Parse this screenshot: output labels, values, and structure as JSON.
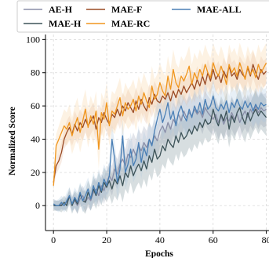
{
  "chart_data": {
    "type": "line",
    "xlabel": "Epochs",
    "ylabel": "Normalized Score",
    "xlim": [
      -3,
      81
    ],
    "ylim": [
      -15,
      103
    ],
    "xticks": [
      0,
      20,
      40,
      60,
      80
    ],
    "yticks": [
      0,
      20,
      40,
      60,
      80,
      100
    ],
    "grid": true,
    "legend_position": "top",
    "series": [
      {
        "name": "AE-H",
        "color": "#8a8ea8",
        "band_color": "#9aa3b6",
        "x": [
          0,
          1,
          2,
          3,
          4,
          5,
          6,
          7,
          8,
          9,
          10,
          11,
          12,
          13,
          14,
          15,
          16,
          17,
          18,
          19,
          20,
          21,
          22,
          23,
          24,
          25,
          26,
          27,
          28,
          29,
          30,
          31,
          32,
          33,
          34,
          35,
          36,
          37,
          38,
          39,
          40,
          41,
          42,
          43,
          44,
          45,
          46,
          47,
          48,
          49,
          50,
          51,
          52,
          53,
          54,
          55,
          56,
          57,
          58,
          59,
          60,
          61,
          62,
          63,
          64,
          65,
          66,
          67,
          68,
          69,
          70,
          71,
          72,
          73,
          74,
          75,
          76,
          77,
          78,
          79,
          80
        ],
        "values": [
          1,
          0,
          0,
          1,
          0,
          2,
          5,
          1,
          3,
          0,
          4,
          6,
          2,
          5,
          3,
          8,
          10,
          6,
          12,
          9,
          14,
          18,
          15,
          22,
          19,
          25,
          28,
          24,
          31,
          29,
          34,
          30,
          36,
          33,
          38,
          35,
          40,
          37,
          42,
          39,
          45,
          48,
          44,
          50,
          46,
          52,
          49,
          55,
          51,
          57,
          53,
          56,
          54,
          58,
          55,
          57,
          53,
          59,
          56,
          54,
          52,
          55,
          50,
          54,
          49,
          53,
          51,
          56,
          52,
          55,
          50,
          54,
          57,
          53,
          58,
          55,
          60,
          56,
          59,
          57,
          58
        ],
        "band": [
          3,
          3,
          3,
          3,
          3,
          4,
          4,
          4,
          5,
          5,
          5,
          6,
          6,
          6,
          6,
          7,
          7,
          7,
          7,
          8,
          8,
          8,
          9,
          9,
          9,
          9,
          10,
          10,
          10,
          10,
          10,
          10,
          10,
          10,
          10,
          10,
          10,
          10,
          10,
          10,
          10,
          10,
          10,
          10,
          10,
          10,
          10,
          10,
          10,
          10,
          10,
          10,
          10,
          10,
          10,
          10,
          10,
          10,
          10,
          10,
          10,
          10,
          10,
          10,
          10,
          10,
          10,
          10,
          10,
          10,
          10,
          10,
          10,
          10,
          10,
          10,
          10,
          10,
          10,
          10,
          10
        ]
      },
      {
        "name": "MAE-H",
        "color": "#3d5358",
        "band_color": "#6f8791",
        "x": [
          0,
          1,
          2,
          3,
          4,
          5,
          6,
          7,
          8,
          9,
          10,
          11,
          12,
          13,
          14,
          15,
          16,
          17,
          18,
          19,
          20,
          21,
          22,
          23,
          24,
          25,
          26,
          27,
          28,
          29,
          30,
          31,
          32,
          33,
          34,
          35,
          36,
          37,
          38,
          39,
          40,
          41,
          42,
          43,
          44,
          45,
          46,
          47,
          48,
          49,
          50,
          51,
          52,
          53,
          54,
          55,
          56,
          57,
          58,
          59,
          60,
          61,
          62,
          63,
          64,
          65,
          66,
          67,
          68,
          69,
          70,
          71,
          72,
          73,
          74,
          75,
          76,
          77,
          78,
          79,
          80
        ],
        "values": [
          0,
          0,
          0,
          0,
          2,
          0,
          6,
          0,
          4,
          1,
          7,
          3,
          2,
          8,
          4,
          10,
          6,
          12,
          8,
          14,
          11,
          15,
          10,
          16,
          13,
          18,
          12,
          20,
          17,
          24,
          18,
          22,
          25,
          21,
          27,
          22,
          30,
          26,
          34,
          28,
          30,
          36,
          33,
          40,
          37,
          35,
          42,
          38,
          44,
          40,
          42,
          46,
          43,
          48,
          45,
          50,
          47,
          52,
          49,
          50,
          58,
          52,
          48,
          55,
          51,
          57,
          46,
          54,
          50,
          56,
          59,
          53,
          49,
          56,
          51,
          55,
          58,
          54,
          57,
          55,
          53
        ],
        "band": [
          3,
          3,
          3,
          4,
          4,
          4,
          5,
          5,
          5,
          6,
          6,
          6,
          7,
          7,
          7,
          8,
          8,
          8,
          8,
          9,
          9,
          9,
          9,
          10,
          10,
          10,
          10,
          10,
          10,
          10,
          11,
          11,
          11,
          11,
          11,
          11,
          11,
          11,
          11,
          11,
          11,
          11,
          11,
          11,
          11,
          11,
          11,
          11,
          11,
          11,
          11,
          11,
          11,
          11,
          11,
          11,
          11,
          11,
          11,
          11,
          11,
          11,
          11,
          11,
          11,
          11,
          11,
          11,
          11,
          11,
          11,
          11,
          11,
          11,
          11,
          11,
          11,
          11,
          11,
          11,
          11
        ]
      },
      {
        "name": "MAE-F",
        "color": "#9a4a24",
        "band_color": "#e4b79a",
        "x": [
          0,
          1,
          2,
          3,
          4,
          5,
          6,
          7,
          8,
          9,
          10,
          11,
          12,
          13,
          14,
          15,
          16,
          17,
          18,
          19,
          20,
          21,
          22,
          23,
          24,
          25,
          26,
          27,
          28,
          29,
          30,
          31,
          32,
          33,
          34,
          35,
          36,
          37,
          38,
          39,
          40,
          41,
          42,
          43,
          44,
          45,
          46,
          47,
          48,
          49,
          50,
          51,
          52,
          53,
          54,
          55,
          56,
          57,
          58,
          59,
          60,
          61,
          62,
          63,
          64,
          65,
          66,
          67,
          68,
          69,
          70,
          71,
          72,
          73,
          74,
          75,
          76,
          77,
          78,
          79,
          80
        ],
        "values": [
          14,
          24,
          27,
          32,
          40,
          44,
          47,
          43,
          49,
          45,
          50,
          47,
          52,
          48,
          51,
          54,
          46,
          53,
          50,
          56,
          52,
          49,
          55,
          53,
          58,
          54,
          60,
          57,
          62,
          59,
          56,
          63,
          58,
          64,
          60,
          57,
          65,
          61,
          67,
          63,
          62,
          66,
          64,
          68,
          63,
          69,
          65,
          70,
          67,
          72,
          68,
          71,
          74,
          70,
          76,
          72,
          78,
          73,
          80,
          75,
          82,
          76,
          79,
          74,
          81,
          77,
          84,
          78,
          80,
          76,
          82,
          79,
          77,
          83,
          78,
          85,
          80,
          76,
          82,
          79,
          81
        ],
        "band": [
          4,
          5,
          5,
          6,
          6,
          7,
          7,
          7,
          8,
          8,
          8,
          8,
          8,
          8,
          8,
          8,
          8,
          8,
          8,
          8,
          8,
          8,
          8,
          8,
          8,
          8,
          8,
          8,
          8,
          8,
          8,
          8,
          8,
          8,
          8,
          8,
          8,
          8,
          8,
          8,
          8,
          8,
          8,
          8,
          8,
          8,
          8,
          8,
          8,
          8,
          8,
          8,
          8,
          8,
          8,
          8,
          8,
          8,
          8,
          8,
          8,
          8,
          8,
          8,
          8,
          8,
          8,
          8,
          8,
          8,
          8,
          8,
          8,
          8,
          8,
          8,
          8,
          8,
          8,
          8,
          8
        ]
      },
      {
        "name": "MAE-RC",
        "color": "#f0961e",
        "band_color": "#f8cf9c",
        "x": [
          0,
          1,
          2,
          3,
          4,
          5,
          6,
          7,
          8,
          9,
          10,
          11,
          12,
          13,
          14,
          15,
          16,
          17,
          18,
          19,
          20,
          21,
          22,
          23,
          24,
          25,
          26,
          27,
          28,
          29,
          30,
          31,
          32,
          33,
          34,
          35,
          36,
          37,
          38,
          39,
          40,
          41,
          42,
          43,
          44,
          45,
          46,
          47,
          48,
          49,
          50,
          51,
          52,
          53,
          54,
          55,
          56,
          57,
          58,
          59,
          60,
          61,
          62,
          63,
          64,
          65,
          66,
          67,
          68,
          69,
          70,
          71,
          72,
          73,
          74,
          75,
          76,
          77,
          78,
          79,
          80
        ],
        "values": [
          12,
          36,
          40,
          44,
          48,
          46,
          50,
          42,
          48,
          53,
          44,
          51,
          58,
          47,
          54,
          49,
          57,
          34,
          56,
          52,
          62,
          48,
          57,
          55,
          60,
          65,
          54,
          62,
          58,
          60,
          64,
          57,
          66,
          61,
          68,
          63,
          59,
          72,
          64,
          67,
          74,
          69,
          66,
          78,
          70,
          82,
          74,
          71,
          78,
          75,
          79,
          84,
          73,
          80,
          76,
          82,
          78,
          85,
          80,
          77,
          86,
          81,
          78,
          84,
          79,
          73,
          85,
          80,
          83,
          78,
          86,
          81,
          76,
          84,
          79,
          82,
          77,
          85,
          80,
          83,
          86
        ],
        "band": [
          5,
          7,
          8,
          9,
          10,
          10,
          11,
          11,
          12,
          12,
          12,
          12,
          12,
          12,
          12,
          12,
          12,
          12,
          12,
          12,
          12,
          12,
          12,
          12,
          12,
          12,
          12,
          12,
          12,
          12,
          12,
          12,
          12,
          12,
          12,
          12,
          12,
          12,
          12,
          12,
          12,
          12,
          12,
          12,
          12,
          12,
          12,
          12,
          12,
          12,
          12,
          12,
          12,
          12,
          12,
          12,
          12,
          12,
          12,
          12,
          12,
          12,
          12,
          12,
          12,
          12,
          12,
          12,
          12,
          12,
          12,
          12,
          12,
          12,
          12,
          12,
          12,
          12,
          12,
          12,
          12
        ]
      },
      {
        "name": "MAE-ALL",
        "color": "#4a7fb5",
        "band_color": "#a8c4de",
        "x": [
          0,
          1,
          2,
          3,
          4,
          5,
          6,
          7,
          8,
          9,
          10,
          11,
          12,
          13,
          14,
          15,
          16,
          17,
          18,
          19,
          20,
          21,
          22,
          23,
          24,
          25,
          26,
          27,
          28,
          29,
          30,
          31,
          32,
          33,
          34,
          35,
          36,
          37,
          38,
          39,
          40,
          41,
          42,
          43,
          44,
          45,
          46,
          47,
          48,
          49,
          50,
          51,
          52,
          53,
          54,
          55,
          56,
          57,
          58,
          59,
          60,
          61,
          62,
          63,
          64,
          65,
          66,
          67,
          68,
          69,
          70,
          71,
          72,
          73,
          74,
          75,
          76,
          77,
          78,
          79,
          80
        ],
        "values": [
          1,
          0,
          0,
          2,
          0,
          3,
          6,
          1,
          5,
          2,
          8,
          3,
          6,
          10,
          4,
          12,
          7,
          14,
          9,
          16,
          12,
          18,
          40,
          28,
          14,
          22,
          42,
          20,
          25,
          34,
          24,
          28,
          38,
          26,
          35,
          30,
          40,
          36,
          45,
          52,
          58,
          50,
          55,
          62,
          52,
          57,
          48,
          56,
          60,
          54,
          51,
          58,
          53,
          60,
          56,
          62,
          55,
          64,
          58,
          60,
          66,
          59,
          57,
          61,
          58,
          63,
          56,
          62,
          59,
          64,
          60,
          58,
          63,
          59,
          62,
          57,
          61,
          58,
          62,
          60,
          61
        ],
        "band": [
          3,
          3,
          4,
          4,
          4,
          5,
          5,
          5,
          6,
          6,
          6,
          7,
          7,
          7,
          7,
          8,
          8,
          8,
          8,
          9,
          9,
          9,
          9,
          10,
          10,
          10,
          10,
          10,
          10,
          10,
          10,
          10,
          10,
          10,
          10,
          10,
          10,
          10,
          10,
          10,
          10,
          10,
          10,
          10,
          10,
          10,
          10,
          10,
          10,
          10,
          10,
          10,
          10,
          10,
          10,
          10,
          10,
          10,
          10,
          10,
          10,
          10,
          10,
          10,
          10,
          10,
          10,
          10,
          10,
          10,
          10,
          10,
          10,
          10,
          10,
          10,
          10,
          10,
          10,
          10,
          10
        ]
      }
    ]
  }
}
